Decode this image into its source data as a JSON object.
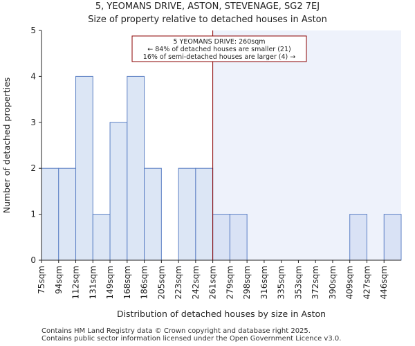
{
  "header": {
    "title_line1": "5, YEOMANS DRIVE, ASTON, STEVENAGE, SG2 7EJ",
    "title_line2": "Size of property relative to detached houses in Aston"
  },
  "footer": {
    "line1": "Contains HM Land Registry data © Crown copyright and database right 2025.",
    "line2": "Contains public sector information licensed under the Open Government Licence v3.0."
  },
  "chart_data": {
    "type": "bar",
    "title": "Size of property relative to detached houses in Aston",
    "xlabel": "Distribution of detached houses by size in Aston",
    "ylabel": "Number of detached properties",
    "categories": [
      "75sqm",
      "94sqm",
      "112sqm",
      "131sqm",
      "149sqm",
      "168sqm",
      "186sqm",
      "205sqm",
      "223sqm",
      "242sqm",
      "261sqm",
      "279sqm",
      "298sqm",
      "316sqm",
      "335sqm",
      "353sqm",
      "372sqm",
      "390sqm",
      "409sqm",
      "427sqm",
      "446sqm"
    ],
    "values": [
      2,
      2,
      4,
      1,
      3,
      4,
      2,
      0,
      2,
      2,
      1,
      1,
      0,
      0,
      0,
      0,
      0,
      0,
      1,
      0,
      1
    ],
    "ylim": [
      0,
      5
    ],
    "yticks": [
      0,
      1,
      2,
      3,
      4,
      5
    ],
    "marker": {
      "value_sqm": 260,
      "position_bin": 10
    },
    "annotation": {
      "line1": "5 YEOMANS DRIVE: 260sqm",
      "line2": "← 84% of detached houses are smaller (21)",
      "line3": "16% of semi-detached houses are larger (4) →"
    },
    "colors": {
      "bar_before": "#dce6f5",
      "bar_after": "#d9e2f5",
      "bar_edge": "#5b7fc4",
      "highlight_bg": "#eef2fb",
      "marker_line": "#8b0000",
      "axis": "#222222"
    }
  }
}
